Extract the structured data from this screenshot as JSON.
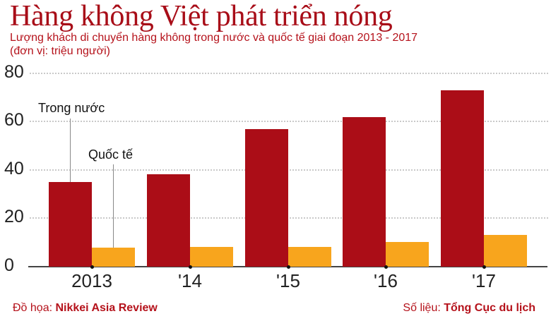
{
  "header": {
    "title": "Hàng không Việt phát triển nóng",
    "subtitle": "Lượng khách di chuyển hàng không trong nước và quốc tế giai đoạn 2013 - 2017",
    "unit": "(đơn vị: triệu người)"
  },
  "annotations": {
    "domestic": "Trong nước",
    "international": "Quốc tế"
  },
  "footer": {
    "graphics_label": "Đồ họa: ",
    "graphics_value": "Nikkei Asia Review",
    "source_label": "Số liệu: ",
    "source_value": "Tổng Cục du lịch"
  },
  "colors": {
    "domestic": "#ab0d17",
    "international": "#f8a51d",
    "title": "#a80d18"
  },
  "chart_data": {
    "type": "bar",
    "title": "Hàng không Việt phát triển nóng",
    "subtitle": "Lượng khách di chuyển hàng không trong nước và quốc tế giai đoạn 2013 - 2017 (đơn vị: triệu người)",
    "xlabel": "",
    "ylabel": "triệu người",
    "categories": [
      "2013",
      "'14",
      "'15",
      "'16",
      "'17"
    ],
    "series": [
      {
        "name": "Trong nước",
        "color": "#ab0d17",
        "values": [
          35,
          38.2,
          56.9,
          61.8,
          72.9
        ]
      },
      {
        "name": "Quốc tế",
        "color": "#f8a51d",
        "values": [
          7.9,
          8.2,
          8.2,
          10.2,
          13.1
        ]
      }
    ],
    "yticks": [
      0,
      20,
      40,
      60,
      80
    ],
    "ylim": [
      0,
      80
    ],
    "grid": true,
    "legend": "inline annotations over 2013 bars",
    "source": "Tổng Cục du lịch",
    "credit": "Nikkei Asia Review"
  }
}
